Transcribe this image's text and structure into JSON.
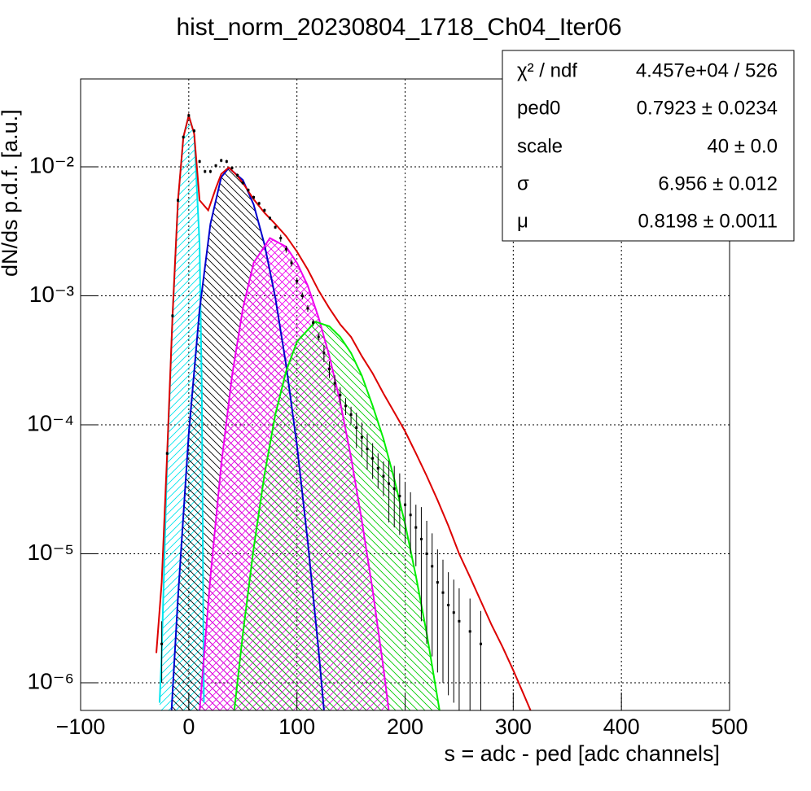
{
  "chart_data": {
    "type": "line",
    "title": "hist_norm_20230804_1718_Ch04_Iter06",
    "x_label": "s = adc - ped [adc channels]",
    "y_label": "dN/ds p.d.f. [a.u.]",
    "xlim": [
      -100,
      500
    ],
    "xticks": [
      {
        "value": -100,
        "label": "−100"
      },
      0,
      100,
      200,
      300,
      400,
      500
    ],
    "ylim": [
      6.1e-07,
      0.048
    ],
    "log_y": true,
    "grid": true,
    "yticks": [
      {
        "value": 1e-06,
        "label": "10⁻⁶"
      },
      {
        "value": 1e-05,
        "label": "10⁻⁵"
      },
      {
        "value": 0.0001,
        "label": "10⁻⁴"
      },
      {
        "value": 0.001,
        "label": "10⁻³"
      },
      {
        "value": 0.01,
        "label": "10⁻²"
      }
    ],
    "stats": [
      {
        "label": "χ² / ndf",
        "value": "4.457e+04 / 526"
      },
      {
        "label": "ped0",
        "value": "0.7923 ± 0.0234"
      },
      {
        "label": "scale",
        "value": "40 ± 0.0"
      },
      {
        "label": "σ",
        "value": "6.956 ± 0.012"
      },
      {
        "label": "μ",
        "value": "0.8198 ± 0.0011"
      }
    ],
    "components": [
      {
        "color": "#00e5ee",
        "fill": "#00e5ee",
        "hatch": "forward",
        "x": [
          -27,
          -25,
          -20,
          -15,
          -10,
          -5,
          0,
          5,
          10,
          12,
          14
        ],
        "values": [
          7e-07,
          1.7e-06,
          5.3e-05,
          0.0007,
          0.0054,
          0.017,
          0.025,
          0.018,
          0.0025,
          0.0002,
          7e-07
        ]
      },
      {
        "color": "#0000cc",
        "fill": "#000000",
        "hatch": "back",
        "x": [
          -16,
          -10,
          0,
          10,
          20,
          30,
          37,
          50,
          60,
          70,
          80,
          90,
          100,
          110,
          120,
          125
        ],
        "values": [
          6e-07,
          4.6e-06,
          8.5e-05,
          0.00078,
          0.0036,
          0.0083,
          0.0098,
          0.0079,
          0.0051,
          0.0025,
          0.00097,
          0.00029,
          6.9e-05,
          1.25e-05,
          1.8e-06,
          6.1e-07
        ]
      },
      {
        "color": "#ee00ee",
        "fill": "#ee00ee",
        "hatch": "cross",
        "x": [
          10,
          20,
          30,
          40,
          50,
          60,
          75,
          90,
          100,
          110,
          120,
          130,
          140,
          150,
          160,
          170,
          180,
          185
        ],
        "values": [
          6e-07,
          6.6e-06,
          4.9e-05,
          0.00024,
          0.0008,
          0.0018,
          0.0028,
          0.0024,
          0.0018,
          0.0012,
          0.00068,
          0.00034,
          0.00015,
          5.6e-05,
          1.8e-05,
          5.2e-06,
          1.3e-06,
          6e-07
        ]
      },
      {
        "color": "#00ee00",
        "fill": "#00cc00",
        "hatch": "back",
        "x": [
          42,
          50,
          60,
          70,
          80,
          90,
          100,
          117,
          130,
          140,
          150,
          160,
          170,
          180,
          190,
          200,
          210,
          220,
          232
        ],
        "values": [
          6e-07,
          2.4e-06,
          1.1e-05,
          4.1e-05,
          0.00012,
          0.00026,
          0.00044,
          0.00063,
          0.00058,
          0.00048,
          0.00036,
          0.00024,
          0.00014,
          7.8e-05,
          3.8e-05,
          1.7e-05,
          6.7e-06,
          2.4e-06,
          6e-07
        ]
      }
    ],
    "fit": {
      "color": "#dd0000",
      "x": [
        -30,
        -25,
        -20,
        -15,
        -10,
        -5,
        0,
        5,
        10,
        18,
        25,
        30,
        37,
        45,
        50,
        60,
        70,
        80,
        90,
        100,
        110,
        120,
        130,
        140,
        150,
        160,
        170,
        180,
        190,
        200,
        210,
        220,
        230,
        240,
        250,
        260,
        270,
        280,
        290,
        300,
        310,
        316
      ],
      "values": [
        1.7e-06,
        6e-06,
        6e-05,
        0.0007,
        0.0055,
        0.017,
        0.025,
        0.018,
        0.0055,
        0.0046,
        0.0068,
        0.0088,
        0.0099,
        0.0085,
        0.0075,
        0.0056,
        0.0044,
        0.0036,
        0.0029,
        0.0022,
        0.0016,
        0.0011,
        0.0008,
        0.0006,
        0.00048,
        0.00034,
        0.00025,
        0.000175,
        0.000125,
        8.9e-05,
        6e-05,
        4e-05,
        2.6e-05,
        1.65e-05,
        1e-05,
        6.6e-06,
        4.3e-06,
        2.8e-06,
        1.9e-06,
        1.25e-06,
        8e-07,
        6.1e-07
      ]
    },
    "data": {
      "color": "#000000",
      "x": [
        -25,
        -20,
        -15,
        -10,
        -5,
        0,
        5,
        10,
        15,
        20,
        25,
        30,
        35,
        40,
        45,
        50,
        55,
        60,
        65,
        70,
        75,
        80,
        85,
        90,
        95,
        100,
        105,
        110,
        115,
        120,
        125,
        130,
        135,
        140,
        145,
        150,
        155,
        160,
        165,
        170,
        175,
        180,
        185,
        190,
        195,
        200,
        205,
        210,
        215,
        220,
        225,
        230,
        235,
        240,
        245,
        250,
        260,
        270
      ],
      "values": [
        2e-06,
        6e-05,
        0.0007,
        0.0055,
        0.017,
        0.025,
        0.019,
        0.011,
        0.0092,
        0.0092,
        0.0102,
        0.0112,
        0.011,
        0.0098,
        0.0086,
        0.0075,
        0.0066,
        0.0058,
        0.0052,
        0.0046,
        0.004,
        0.0034,
        0.0028,
        0.0023,
        0.0018,
        0.0013,
        0.001,
        0.0008,
        0.00062,
        0.00048,
        0.00036,
        0.00027,
        0.00021,
        0.00017,
        0.00014,
        0.00012,
        9.5e-05,
        8e-05,
        6.5e-05,
        5.5e-05,
        4.6e-05,
        4e-05,
        3.5e-05,
        3.2e-05,
        2.8e-05,
        2.4e-05,
        2e-05,
        1.6e-05,
        1.3e-05,
        1e-05,
        8e-06,
        6e-06,
        5e-06,
        4e-06,
        3.5e-06,
        3e-06,
        2.5e-06,
        2e-06
      ],
      "errors": [
        1e-06,
        1.8e-06,
        2.1e-05,
        0.000165,
        0.00051,
        0.00075,
        0.00057,
        0.00033,
        0.00028,
        0.00028,
        0.00031,
        0.00034,
        0.00033,
        0.00029,
        0.00026,
        0.00023,
        0.0002,
        0.00017,
        0.00016,
        0.00014,
        0.00012,
        0.0001,
        0.00017,
        0.00014,
        0.00011,
        7.8e-05,
        6e-05,
        4.8e-05,
        3.7e-05,
        2.9e-05,
        5.4e-05,
        4e-05,
        3.2e-05,
        2.6e-05,
        2.1e-05,
        1.8e-05,
        2.9e-05,
        2.4e-05,
        2e-05,
        1.7e-05,
        1.4e-05,
        1.2e-05,
        1.75e-05,
        1.6e-05,
        1.4e-05,
        1.2e-05,
        1e-05,
        8e-06,
        1e-05,
        8e-06,
        6.4e-06,
        4.8e-06,
        4e-06,
        3.2e-06,
        2.8e-06,
        2.4e-06,
        2e-06,
        1.6e-06
      ]
    }
  }
}
